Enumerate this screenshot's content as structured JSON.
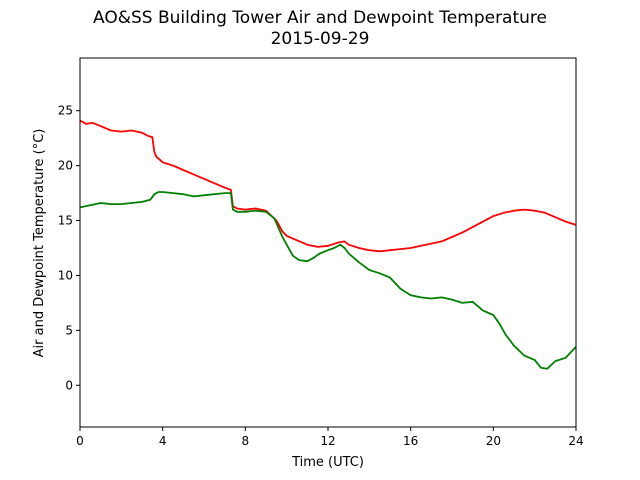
{
  "chart_data": {
    "type": "line",
    "title": "AO&SS Building Tower Air and Dewpoint Temperature",
    "subtitle": "2015-09-29",
    "xlabel": "Time (UTC)",
    "ylabel": "Air and Dewpoint Temperature (°C)",
    "xlim": [
      0,
      24
    ],
    "ylim": [
      -3.8,
      29.8
    ],
    "xticks": [
      0,
      4,
      8,
      12,
      16,
      20,
      24
    ],
    "xtick_labels": [
      "0",
      "4",
      "8",
      "12",
      "16",
      "20",
      "24"
    ],
    "yticks": [
      0,
      5,
      10,
      15,
      20,
      25
    ],
    "ytick_labels": [
      "0",
      "5",
      "10",
      "15",
      "20",
      "25"
    ],
    "grid": false,
    "legend": "none",
    "series": [
      {
        "color": "#ff0000",
        "x": [
          0,
          0.3,
          0.6,
          1,
          1.5,
          2,
          2.5,
          3,
          3.3,
          3.5,
          3.6,
          3.7,
          4,
          4.5,
          5,
          5.5,
          6,
          6.5,
          7,
          7.3,
          7.4,
          7.6,
          8,
          8.5,
          9,
          9.5,
          9.8,
          10,
          10.5,
          11,
          11.5,
          12,
          12.5,
          12.8,
          13,
          13.5,
          14,
          14.5,
          15,
          15.5,
          16,
          16.5,
          17,
          17.5,
          18,
          18.5,
          19,
          19.5,
          20,
          20.5,
          21,
          21.5,
          22,
          22.5,
          23,
          23.5,
          24
        ],
        "y": [
          24.1,
          23.8,
          23.9,
          23.6,
          23.2,
          23.1,
          23.2,
          23.0,
          22.7,
          22.6,
          21.2,
          20.8,
          20.3,
          20.0,
          19.6,
          19.2,
          18.8,
          18.4,
          18.0,
          17.8,
          16.3,
          16.1,
          16.0,
          16.1,
          15.9,
          15.0,
          14.0,
          13.6,
          13.2,
          12.8,
          12.6,
          12.7,
          13.0,
          13.1,
          12.8,
          12.5,
          12.3,
          12.2,
          12.3,
          12.4,
          12.5,
          12.7,
          12.9,
          13.1,
          13.5,
          13.9,
          14.4,
          14.9,
          15.4,
          15.7,
          15.9,
          16.0,
          15.9,
          15.7,
          15.3,
          14.9,
          14.6
        ]
      },
      {
        "color": "#008000",
        "x": [
          0,
          0.5,
          1,
          1.5,
          2,
          2.5,
          3,
          3.4,
          3.6,
          3.8,
          4,
          4.5,
          5,
          5.5,
          6,
          6.5,
          7,
          7.3,
          7.4,
          7.6,
          8,
          8.5,
          9,
          9.4,
          9.8,
          10,
          10.3,
          10.6,
          11,
          11.3,
          11.6,
          12,
          12.3,
          12.6,
          12.8,
          13,
          13.5,
          14,
          14.5,
          15,
          15.5,
          16,
          16.5,
          17,
          17.5,
          18,
          18.5,
          19,
          19.5,
          20,
          20.3,
          20.6,
          21,
          21.5,
          22,
          22.3,
          22.6,
          23,
          23.5,
          24
        ],
        "y": [
          16.2,
          16.4,
          16.6,
          16.5,
          16.5,
          16.6,
          16.7,
          16.9,
          17.4,
          17.6,
          17.6,
          17.5,
          17.4,
          17.2,
          17.3,
          17.4,
          17.5,
          17.5,
          16.0,
          15.8,
          15.8,
          15.9,
          15.8,
          15.2,
          13.5,
          12.8,
          11.8,
          11.4,
          11.3,
          11.6,
          12.0,
          12.3,
          12.5,
          12.8,
          12.5,
          12.0,
          11.2,
          10.5,
          10.2,
          9.8,
          8.8,
          8.2,
          8.0,
          7.9,
          8.0,
          7.8,
          7.5,
          7.6,
          6.8,
          6.4,
          5.6,
          4.6,
          3.6,
          2.7,
          2.3,
          1.6,
          1.5,
          2.2,
          2.5,
          3.5
        ]
      }
    ]
  }
}
